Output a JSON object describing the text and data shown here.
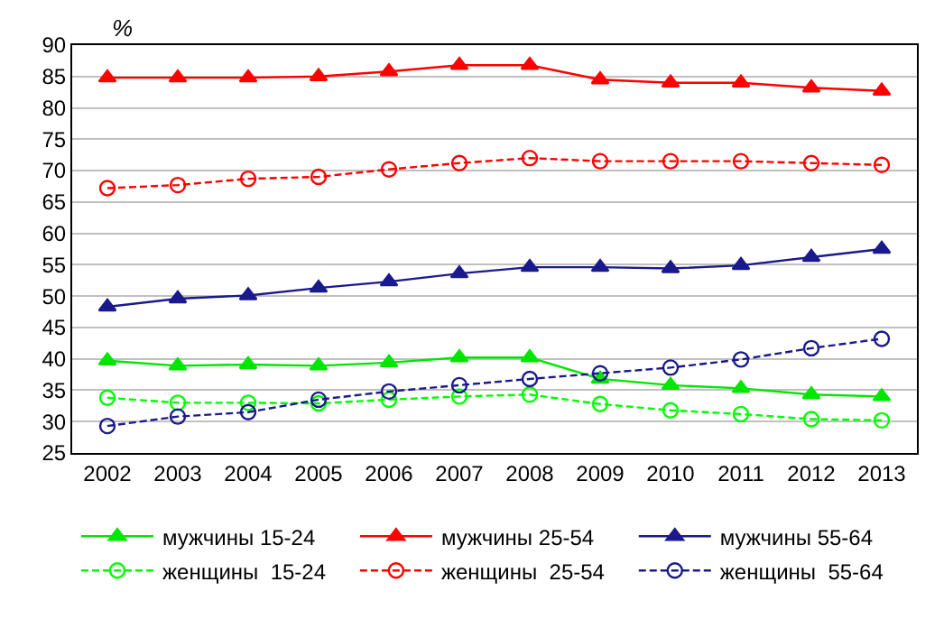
{
  "chart_data": {
    "type": "line",
    "ylabel": "%",
    "categories": [
      "2002",
      "2003",
      "2004",
      "2005",
      "2006",
      "2007",
      "2008",
      "2009",
      "2010",
      "2011",
      "2012",
      "2013"
    ],
    "ylim": [
      25,
      90
    ],
    "yticks": [
      25,
      30,
      35,
      40,
      45,
      50,
      55,
      60,
      65,
      70,
      75,
      80,
      85,
      90
    ],
    "grid": "y",
    "legend": "bottom",
    "series": [
      {
        "name": "мужчины 15-24",
        "color": "#00e600",
        "marker": "triangle",
        "line_style": "solid",
        "values": [
          39.7,
          38.9,
          39.1,
          38.9,
          39.4,
          40.2,
          40.2,
          36.8,
          35.8,
          35.3,
          34.3,
          34.0
        ]
      },
      {
        "name": "мужчины 25-54",
        "color": "#ff0000",
        "marker": "triangle",
        "line_style": "solid",
        "values": [
          84.8,
          84.8,
          84.8,
          85.0,
          85.8,
          86.8,
          86.8,
          84.5,
          84.0,
          84.0,
          83.2,
          82.7
        ]
      },
      {
        "name": "мужчины 55-64",
        "color": "#1a1a8c",
        "marker": "triangle",
        "line_style": "solid",
        "values": [
          48.3,
          49.6,
          50.1,
          51.3,
          52.3,
          53.6,
          54.6,
          54.6,
          54.4,
          54.9,
          56.2,
          57.5
        ]
      },
      {
        "name": "женщины  15-24",
        "color": "#00ff00",
        "marker": "circle",
        "line_style": "dashed",
        "values": [
          33.8,
          33.0,
          33.0,
          32.9,
          33.5,
          34.0,
          34.3,
          32.8,
          31.8,
          31.2,
          30.4,
          30.2
        ]
      },
      {
        "name": "женщины  25-54",
        "color": "#ff0000",
        "marker": "circle",
        "line_style": "dashed",
        "values": [
          67.2,
          67.7,
          68.7,
          69.0,
          70.2,
          71.2,
          72.0,
          71.5,
          71.5,
          71.5,
          71.2,
          70.9
        ]
      },
      {
        "name": "женщины  55-64",
        "color": "#1a1a8c",
        "marker": "circle",
        "line_style": "dashed",
        "values": [
          29.3,
          30.8,
          31.5,
          33.5,
          34.8,
          35.8,
          36.8,
          37.7,
          38.6,
          39.9,
          41.7,
          43.2
        ]
      }
    ]
  }
}
